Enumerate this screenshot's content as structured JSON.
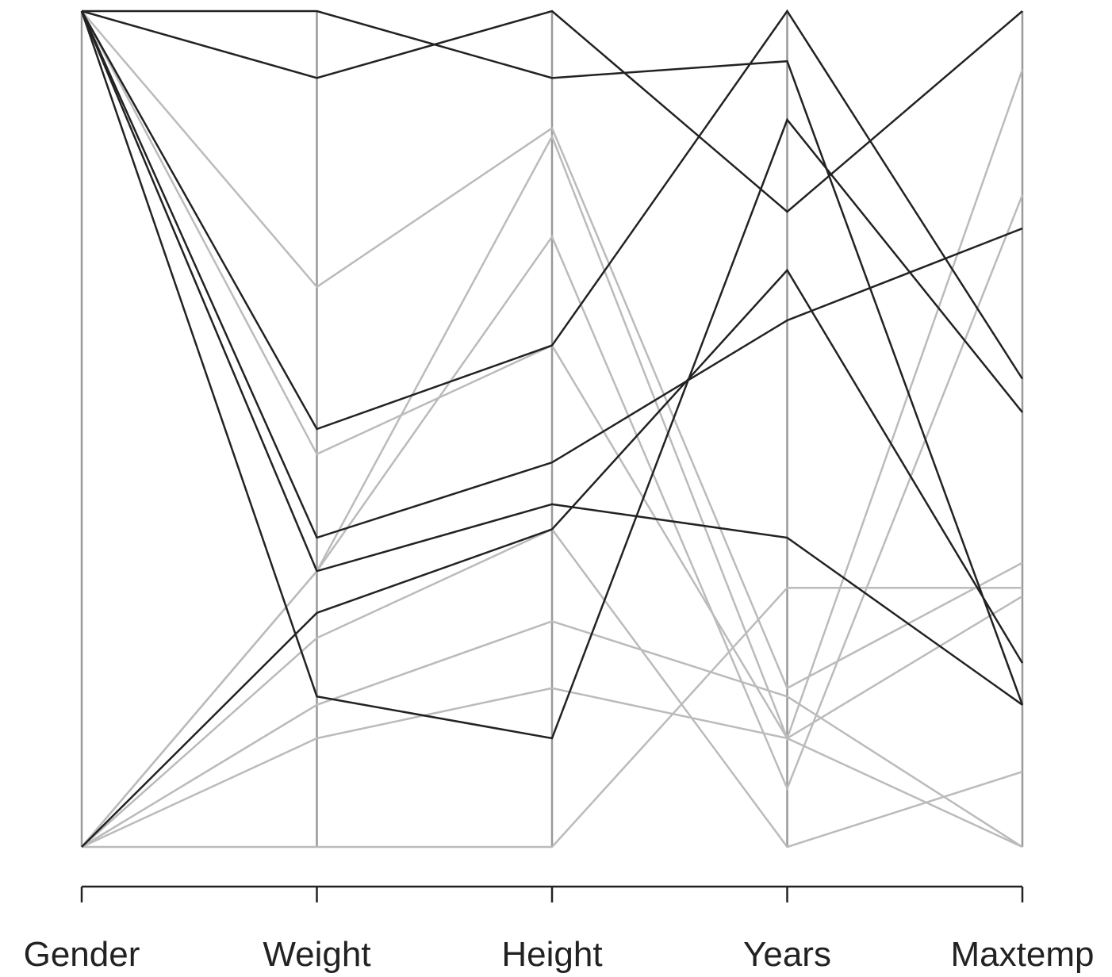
{
  "chart_data": {
    "type": "parallel",
    "categories": [
      "Gender",
      "Weight",
      "Height",
      "Years",
      "Maxtemp"
    ],
    "ylim": [
      0,
      1
    ],
    "series": [
      {
        "color": "#bbbbbb",
        "values": [
          1,
          0.67,
          0.86,
          0.19,
          0.34
        ]
      },
      {
        "color": "#bbbbbb",
        "values": [
          1,
          0.47,
          0.6,
          0.13,
          0
        ]
      },
      {
        "color": "#bbbbbb",
        "values": [
          0,
          0.33,
          0.73,
          0.07,
          0.78
        ]
      },
      {
        "color": "#bbbbbb",
        "values": [
          0,
          0.25,
          0.38,
          0,
          0.09
        ]
      },
      {
        "color": "#bbbbbb",
        "values": [
          0,
          0.17,
          0.27,
          0.18,
          0
        ]
      },
      {
        "color": "#bbbbbb",
        "values": [
          0,
          0.13,
          0.19,
          0.13,
          0.3
        ]
      },
      {
        "color": "#bbbbbb",
        "values": [
          0,
          0,
          0,
          0.31,
          0.31
        ]
      },
      {
        "color": "#bbbbbb",
        "values": [
          0,
          0.33,
          0.85,
          0.13,
          0.93
        ]
      },
      {
        "color": "#222222",
        "values": [
          1,
          1,
          0.92,
          0.94,
          0.17
        ]
      },
      {
        "color": "#222222",
        "values": [
          1,
          0.92,
          1,
          0.76,
          1
        ]
      },
      {
        "color": "#222222",
        "values": [
          1,
          0.5,
          0.6,
          1,
          0.56
        ]
      },
      {
        "color": "#222222",
        "values": [
          1,
          0.37,
          0.46,
          0.63,
          0.74
        ]
      },
      {
        "color": "#222222",
        "values": [
          1,
          0.33,
          0.41,
          0.37,
          0.17
        ]
      },
      {
        "color": "#222222",
        "values": [
          1,
          0.18,
          0.13,
          0.87,
          0.52
        ]
      },
      {
        "color": "#222222",
        "values": [
          0,
          0.28,
          0.38,
          0.69,
          0.22
        ]
      }
    ]
  }
}
